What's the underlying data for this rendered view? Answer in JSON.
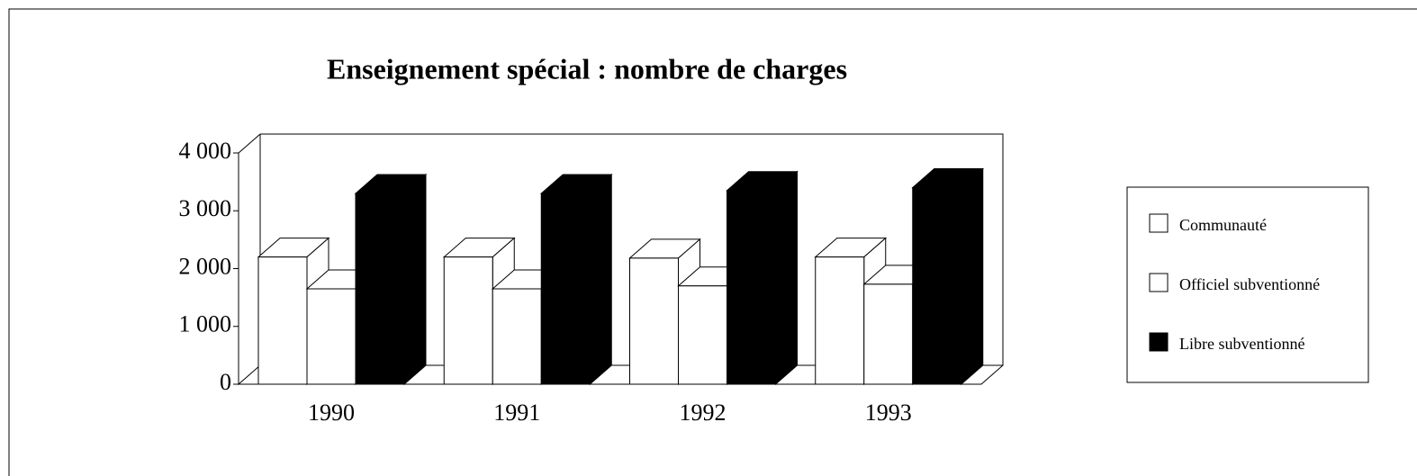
{
  "chart_data": {
    "type": "bar3d",
    "title": "Enseignement spécial : nombre de charges",
    "categories": [
      "1990",
      "1991",
      "1992",
      "1993"
    ],
    "series": [
      {
        "name": "Communauté",
        "color": "#ffffff",
        "values": [
          2200,
          2200,
          2180,
          2200
        ]
      },
      {
        "name": "Officiel subventionné",
        "color": "#ffffff",
        "values": [
          1650,
          1650,
          1700,
          1730
        ]
      },
      {
        "name": "Libre subventionné",
        "color": "#000000",
        "values": [
          3300,
          3300,
          3350,
          3400
        ]
      }
    ],
    "ylim": [
      0,
      4000
    ],
    "yticks": [
      0,
      {
        "value": 1000,
        "label": "1 000"
      },
      {
        "value": 2000,
        "label": "2 000"
      },
      {
        "value": 3000,
        "label": "3 000"
      },
      {
        "value": 4000,
        "label": "4 000"
      }
    ],
    "legend": "right"
  }
}
